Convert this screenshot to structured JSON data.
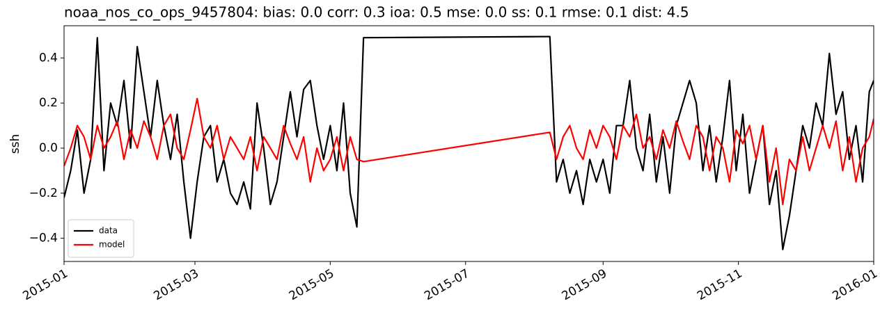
{
  "chart_data": {
    "type": "line",
    "title": "noaa_nos_co_ops_9457804: bias: 0.0  corr: 0.3  ioa: 0.5  mse: 0.0  ss: 0.1  rmse: 0.1  dist: 4.5",
    "y_label": "ssh",
    "x": [
      0,
      3,
      6,
      9,
      12,
      15,
      18,
      21,
      24,
      27,
      30,
      33,
      36,
      39,
      42,
      45,
      48,
      51,
      54,
      57,
      60,
      63,
      66,
      69,
      72,
      75,
      78,
      81,
      84,
      87,
      90,
      93,
      96,
      99,
      102,
      105,
      108,
      111,
      114,
      117,
      120,
      123,
      126,
      129,
      132,
      135,
      219,
      222,
      225,
      228,
      231,
      234,
      237,
      240,
      243,
      246,
      249,
      252,
      255,
      258,
      261,
      264,
      267,
      270,
      273,
      276,
      279,
      282,
      285,
      288,
      291,
      294,
      297,
      300,
      303,
      306,
      309,
      312,
      315,
      318,
      321,
      324,
      327,
      330,
      333,
      336,
      339,
      342,
      345,
      348,
      351,
      354,
      357,
      360,
      363,
      365
    ],
    "series": [
      {
        "name": "data",
        "color": "#000000",
        "values": [
          -0.22,
          -0.1,
          0.08,
          -0.2,
          -0.05,
          0.49,
          -0.1,
          0.2,
          0.1,
          0.3,
          0.0,
          0.45,
          0.25,
          0.05,
          0.3,
          0.1,
          -0.05,
          0.15,
          -0.15,
          -0.4,
          -0.15,
          0.05,
          0.1,
          -0.15,
          -0.05,
          -0.2,
          -0.25,
          -0.15,
          -0.27,
          0.2,
          0.0,
          -0.25,
          -0.15,
          0.05,
          0.25,
          0.05,
          0.26,
          0.3,
          0.1,
          -0.05,
          0.1,
          -0.1,
          0.2,
          -0.2,
          -0.35,
          0.49,
          0.495,
          -0.15,
          -0.05,
          -0.2,
          -0.1,
          -0.25,
          -0.05,
          -0.15,
          -0.05,
          -0.2,
          0.1,
          0.1,
          0.3,
          0.0,
          -0.1,
          0.15,
          -0.15,
          0.05,
          -0.2,
          0.1,
          0.2,
          0.3,
          0.2,
          -0.1,
          0.1,
          -0.15,
          0.05,
          0.3,
          -0.1,
          0.15,
          -0.2,
          -0.05,
          0.1,
          -0.25,
          -0.1,
          -0.45,
          -0.3,
          -0.1,
          0.1,
          0.0,
          0.2,
          0.1,
          0.42,
          0.15,
          0.25,
          -0.05,
          0.1,
          -0.15,
          0.25,
          0.3
        ]
      },
      {
        "name": "model",
        "color": "#ff0000",
        "values": [
          -0.08,
          0.0,
          0.1,
          0.05,
          -0.05,
          0.1,
          0.0,
          0.05,
          0.12,
          -0.05,
          0.08,
          0.0,
          0.12,
          0.05,
          -0.05,
          0.1,
          0.15,
          0.0,
          -0.05,
          0.08,
          0.22,
          0.05,
          0.0,
          0.1,
          -0.05,
          0.05,
          0.0,
          -0.05,
          0.05,
          -0.1,
          0.05,
          0.0,
          -0.05,
          0.1,
          0.02,
          -0.05,
          0.05,
          -0.15,
          0.0,
          -0.1,
          -0.05,
          0.05,
          -0.1,
          0.05,
          -0.05,
          -0.06,
          0.07,
          -0.05,
          0.05,
          0.1,
          0.0,
          -0.05,
          0.08,
          0.0,
          0.1,
          0.05,
          -0.05,
          0.1,
          0.05,
          0.15,
          0.0,
          0.05,
          -0.05,
          0.08,
          0.0,
          0.12,
          0.03,
          -0.05,
          0.1,
          0.05,
          -0.1,
          0.05,
          0.0,
          -0.15,
          0.08,
          0.02,
          0.1,
          -0.05,
          0.1,
          -0.15,
          0.0,
          -0.25,
          -0.05,
          -0.1,
          0.05,
          -0.1,
          0.0,
          0.1,
          0.0,
          0.12,
          -0.1,
          0.05,
          -0.15,
          0.0,
          0.05,
          0.13
        ]
      }
    ],
    "xlim": [
      0,
      365
    ],
    "xticks": [
      {
        "value": 0,
        "label": "2015-01"
      },
      {
        "value": 59,
        "label": "2015-03"
      },
      {
        "value": 120,
        "label": "2015-05"
      },
      {
        "value": 181,
        "label": "2015-07"
      },
      {
        "value": 243,
        "label": "2015-09"
      },
      {
        "value": 304,
        "label": "2015-11"
      },
      {
        "value": 365,
        "label": "2016-01"
      }
    ],
    "ylim": [
      -0.503,
      0.543
    ],
    "yticks": [
      {
        "value": -0.4,
        "label": "−0.4"
      },
      {
        "value": -0.2,
        "label": "−0.2"
      },
      {
        "value": 0,
        "label": "0.0"
      },
      0.2,
      0.4
    ],
    "legend": "lower left"
  }
}
